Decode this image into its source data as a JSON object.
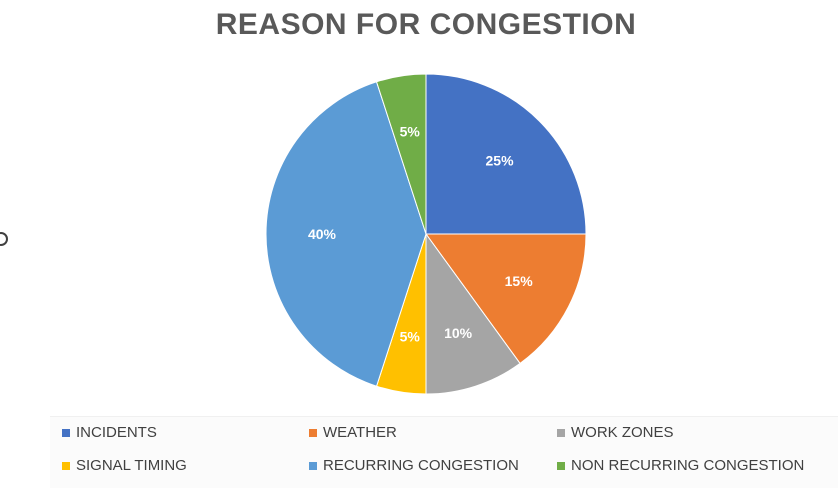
{
  "chart_data": {
    "type": "pie",
    "title": "REASON FOR CONGESTION",
    "categories": [
      "INCIDENTS",
      "WEATHER",
      "WORK ZONES",
      "SIGNAL TIMING",
      "RECURRING CONGESTION",
      "NON RECURRING CONGESTION"
    ],
    "values": [
      25,
      15,
      10,
      5,
      40,
      5
    ],
    "labels": [
      "25%",
      "15%",
      "10%",
      "5%",
      "40%",
      "5%"
    ],
    "colors": [
      "#4472C4",
      "#ED7D31",
      "#A5A5A5",
      "#FFC000",
      "#5B9BD5",
      "#70AD47"
    ],
    "legend_position": "bottom"
  }
}
